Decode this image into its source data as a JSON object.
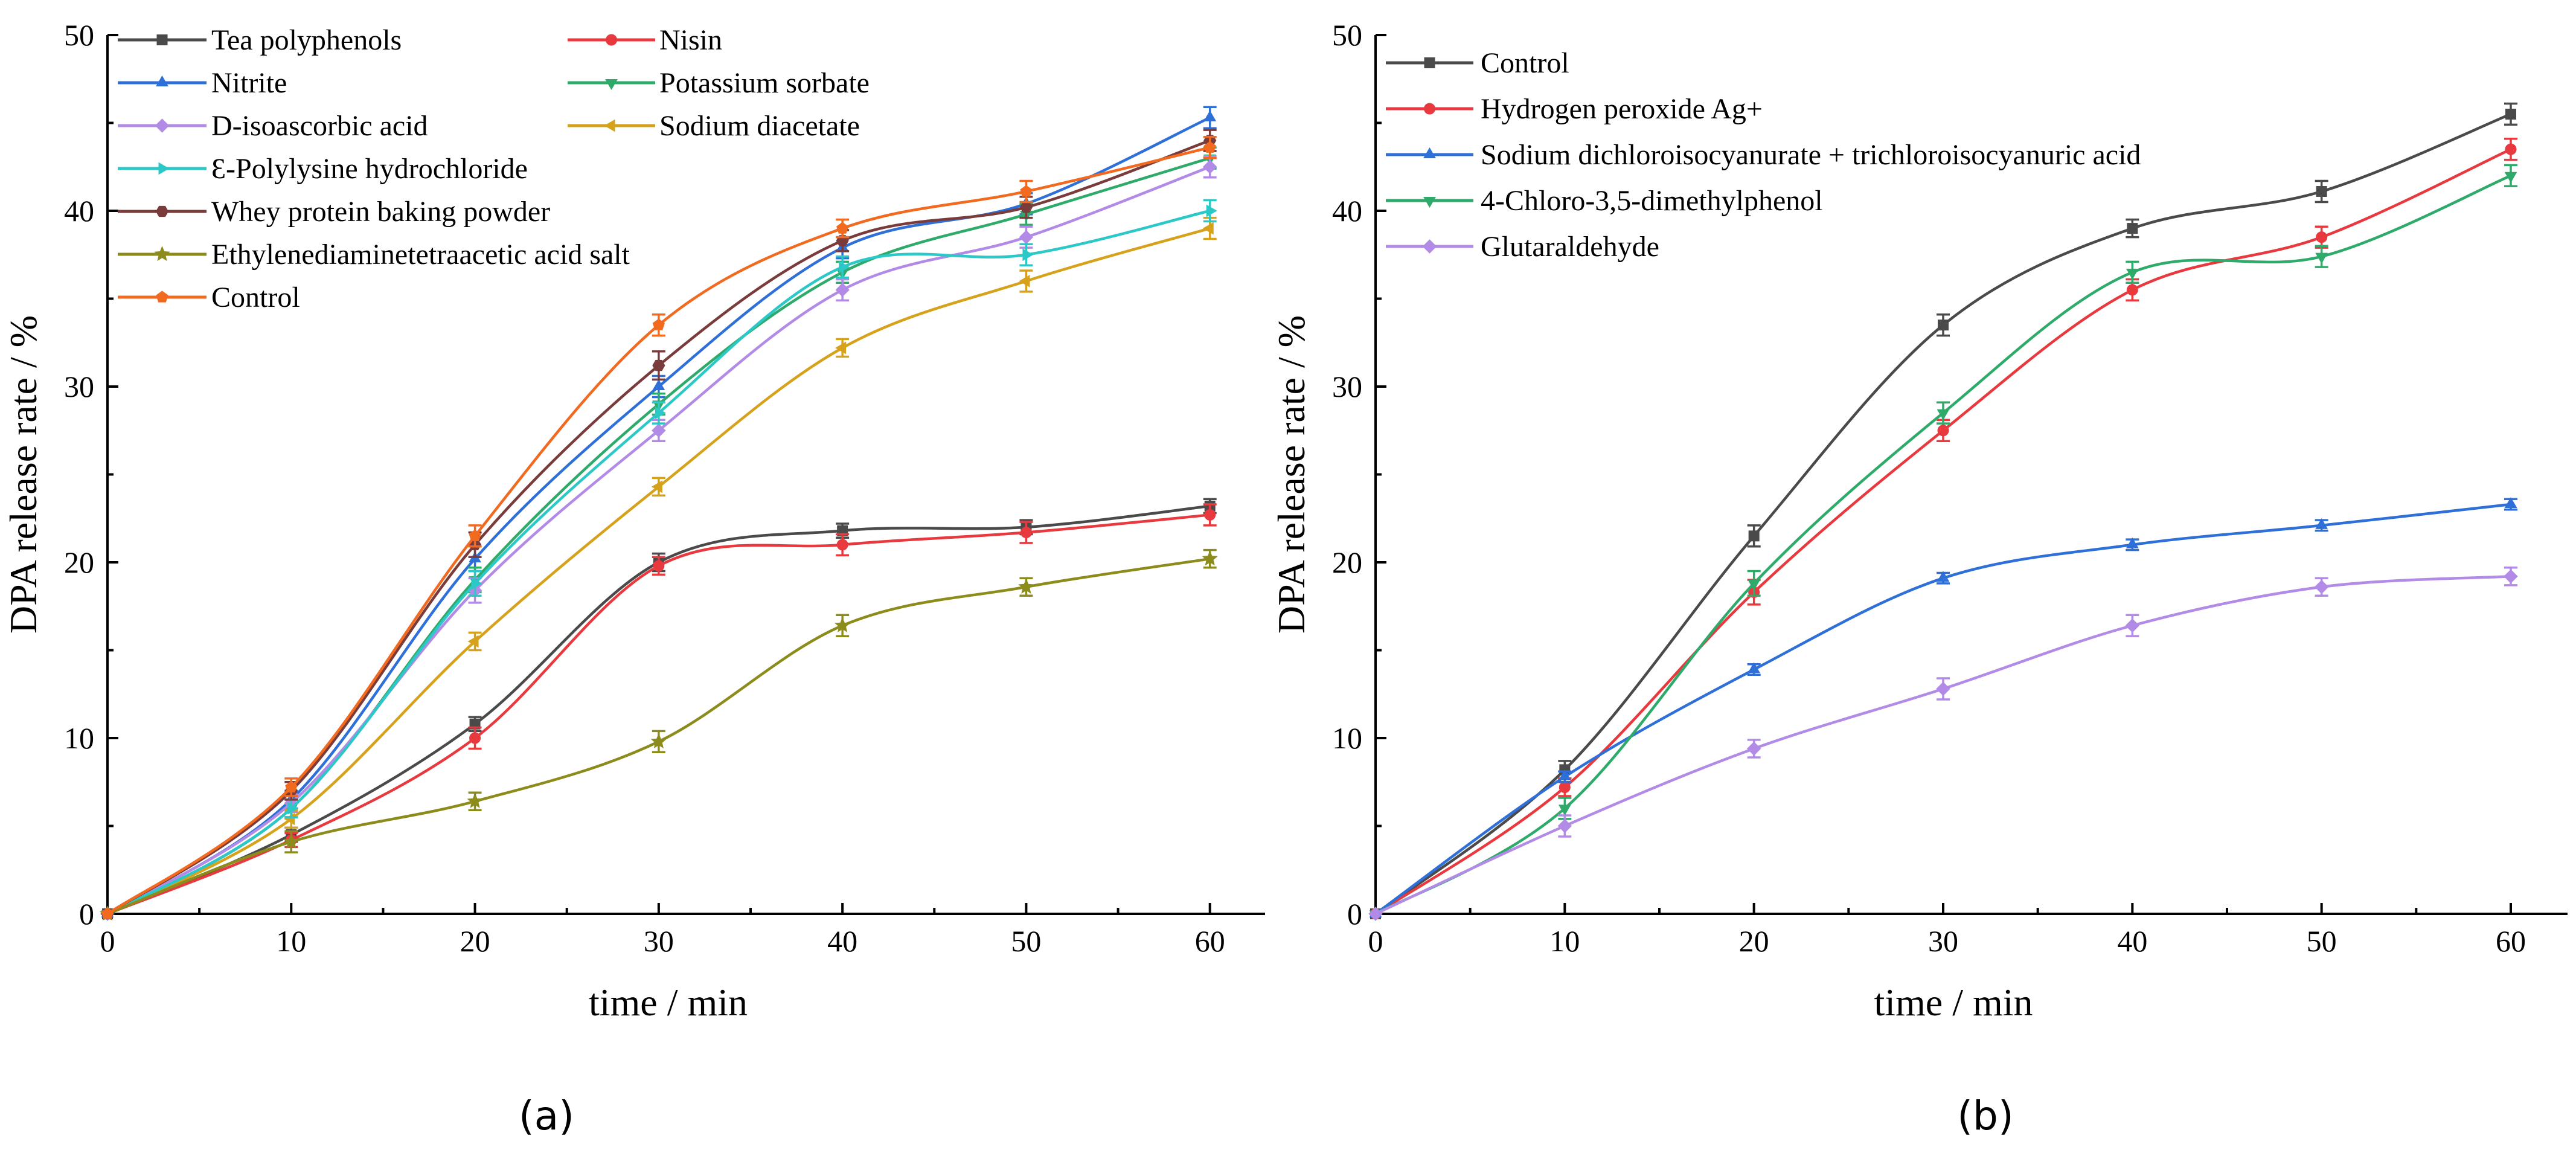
{
  "chart_data": [
    {
      "panel_label": "(a)",
      "type": "line",
      "xlabel": "time / min",
      "ylabel": "DPA release rate / %",
      "xlim": [
        0,
        63
      ],
      "ylim": [
        0,
        50
      ],
      "xticks": [
        0,
        10,
        20,
        30,
        40,
        50,
        60
      ],
      "yticks": [
        0,
        10,
        20,
        30,
        40,
        50
      ],
      "grid": false,
      "legend_position": "top-left",
      "x": [
        0,
        10,
        20,
        30,
        40,
        50,
        60
      ],
      "series": [
        {
          "name": "Tea polyphenols",
          "color": "#4a4a4a",
          "marker": "square",
          "values": [
            0,
            4.5,
            10.8,
            20.0,
            21.8,
            22.0,
            23.2
          ],
          "errors": [
            0,
            0.4,
            0.4,
            0.5,
            0.4,
            0.4,
            0.4
          ]
        },
        {
          "name": "Nisin",
          "color": "#e8393f",
          "marker": "circle",
          "values": [
            0,
            4.2,
            10.0,
            19.8,
            21.0,
            21.7,
            22.7
          ],
          "errors": [
            0,
            0.4,
            0.6,
            0.5,
            0.6,
            0.6,
            0.6
          ]
        },
        {
          "name": "Nitrite",
          "color": "#2f6fd8",
          "marker": "triangle-up",
          "values": [
            0,
            6.5,
            20.2,
            30.0,
            37.9,
            40.4,
            45.3
          ],
          "errors": [
            0,
            0.5,
            0.7,
            0.6,
            0.6,
            0.6,
            0.6
          ]
        },
        {
          "name": "Potassium sorbate",
          "color": "#2eaa6a",
          "marker": "triangle-down",
          "values": [
            0,
            6.0,
            19.0,
            29.0,
            36.5,
            39.8,
            43.0
          ],
          "errors": [
            0,
            0.5,
            0.7,
            0.6,
            0.6,
            0.6,
            0.6
          ]
        },
        {
          "name": "D-isoascorbic acid",
          "color": "#b28be6",
          "marker": "diamond",
          "values": [
            0,
            6.3,
            18.4,
            27.5,
            35.5,
            38.5,
            42.5
          ],
          "errors": [
            0,
            0.5,
            0.7,
            0.6,
            0.6,
            0.6,
            0.6
          ]
        },
        {
          "name": "Sodium diacetate",
          "color": "#d6a21c",
          "marker": "triangle-left",
          "values": [
            0,
            5.4,
            15.5,
            24.3,
            32.2,
            36.0,
            39.0
          ],
          "errors": [
            0,
            0.5,
            0.5,
            0.5,
            0.5,
            0.6,
            0.6
          ]
        },
        {
          "name": "Ɛ-Polylysine hydrochloride",
          "color": "#2cc8c8",
          "marker": "triangle-right",
          "values": [
            0,
            6.0,
            18.8,
            28.5,
            36.8,
            37.5,
            40.0
          ],
          "errors": [
            0,
            0.5,
            0.7,
            0.6,
            0.6,
            0.6,
            0.6
          ]
        },
        {
          "name": "Whey protein baking powder",
          "color": "#7a3b3b",
          "marker": "hexagon",
          "values": [
            0,
            7.0,
            21.0,
            31.2,
            38.3,
            40.2,
            44.0
          ],
          "errors": [
            0,
            0.5,
            0.7,
            0.8,
            0.6,
            0.6,
            0.6
          ]
        },
        {
          "name": "Ethylenediaminetetraacetic acid salt",
          "color": "#8c8c1c",
          "marker": "star",
          "values": [
            0,
            4.1,
            6.4,
            9.8,
            16.4,
            18.6,
            20.2
          ],
          "errors": [
            0,
            0.6,
            0.5,
            0.6,
            0.6,
            0.5,
            0.5
          ]
        },
        {
          "name": "Control",
          "color": "#f26a1f",
          "marker": "pentagon",
          "values": [
            0,
            7.2,
            21.5,
            33.5,
            39.0,
            41.1,
            43.6
          ],
          "errors": [
            0,
            0.5,
            0.6,
            0.6,
            0.5,
            0.6,
            0.6
          ]
        }
      ]
    },
    {
      "panel_label": "(b)",
      "type": "line",
      "xlabel": "time / min",
      "ylabel": "DPA release rate / %",
      "xlim": [
        0,
        63
      ],
      "ylim": [
        0,
        50
      ],
      "xticks": [
        0,
        10,
        20,
        30,
        40,
        50,
        60
      ],
      "yticks": [
        0,
        10,
        20,
        30,
        40,
        50
      ],
      "grid": false,
      "legend_position": "top-left",
      "x": [
        0,
        10,
        20,
        30,
        40,
        50,
        60
      ],
      "series": [
        {
          "name": "Control",
          "color": "#4a4a4a",
          "marker": "square",
          "values": [
            0,
            8.2,
            21.5,
            33.5,
            39.0,
            41.1,
            45.5
          ],
          "errors": [
            0,
            0.5,
            0.6,
            0.6,
            0.5,
            0.6,
            0.6
          ]
        },
        {
          "name": "Hydrogen peroxide Ag+",
          "color": "#e8393f",
          "marker": "circle",
          "values": [
            0,
            7.2,
            18.3,
            27.5,
            35.5,
            38.5,
            43.5
          ],
          "errors": [
            0,
            0.5,
            0.7,
            0.6,
            0.6,
            0.6,
            0.6
          ]
        },
        {
          "name": "Sodium dichloroisocyanurate + trichloroisocyanuric acid",
          "color": "#2f6fd8",
          "marker": "triangle-up",
          "values": [
            0,
            7.8,
            13.9,
            19.1,
            21.0,
            22.1,
            23.3
          ],
          "errors": [
            0,
            0.3,
            0.3,
            0.3,
            0.3,
            0.3,
            0.3
          ]
        },
        {
          "name": "4-Chloro-3,5-dimethylphenol",
          "color": "#2eaa6a",
          "marker": "triangle-down",
          "values": [
            0,
            6.0,
            18.8,
            28.5,
            36.5,
            37.4,
            42.0
          ],
          "errors": [
            0,
            0.6,
            0.7,
            0.6,
            0.6,
            0.6,
            0.6
          ]
        },
        {
          "name": "Glutaraldehyde",
          "color": "#b28be6",
          "marker": "diamond",
          "values": [
            0,
            5.0,
            9.4,
            12.8,
            16.4,
            18.6,
            19.2
          ],
          "errors": [
            0,
            0.6,
            0.5,
            0.6,
            0.6,
            0.5,
            0.5
          ]
        }
      ]
    }
  ]
}
